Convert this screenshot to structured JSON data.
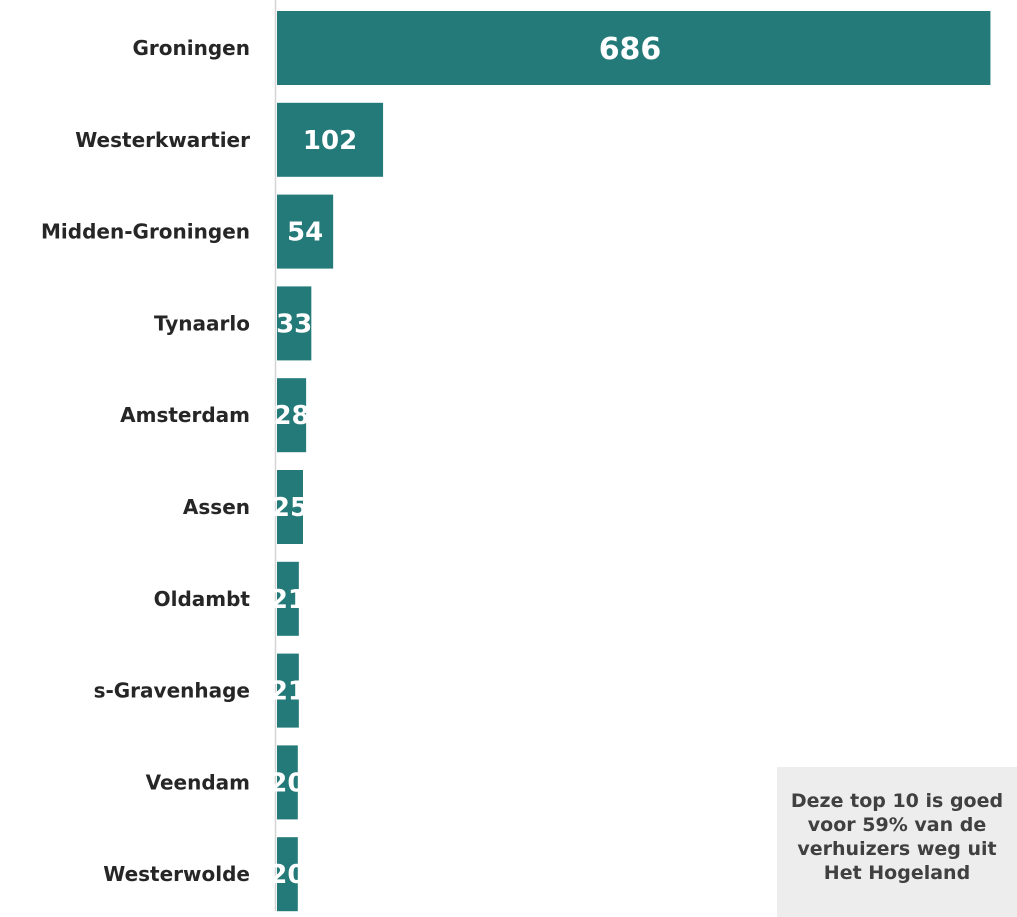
{
  "chart_data": {
    "type": "bar",
    "orientation": "horizontal",
    "categories": [
      "Groningen",
      "Westerkwartier",
      "Midden-Groningen",
      "Tynaarlo",
      "Amsterdam",
      "Assen",
      "Oldambt",
      "s-Gravenhage",
      "Veendam",
      "Westerwolde"
    ],
    "values": [
      686,
      102,
      54,
      33,
      28,
      25,
      21,
      21,
      20,
      20
    ],
    "title": "",
    "xlabel": "",
    "ylabel": "",
    "grid": false,
    "bar_color": "#237a78",
    "data_labels": true
  },
  "callout": {
    "text": "Deze top 10 is goed voor 59% van de verhuizers weg uit Het Hogeland"
  }
}
